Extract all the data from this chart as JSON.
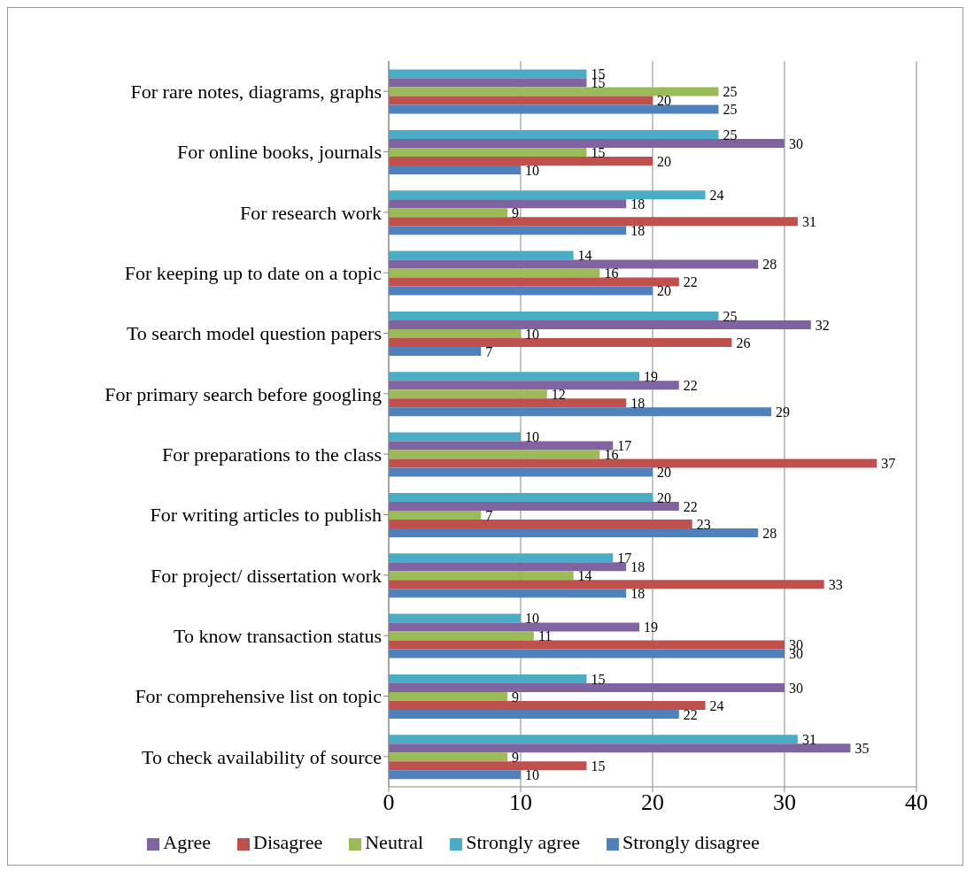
{
  "chart_data": {
    "type": "bar",
    "orientation": "horizontal",
    "categories": [
      "For rare notes, diagrams, graphs",
      "For online books, journals",
      "For research work",
      "For keeping up to date on a topic",
      "To search model question papers",
      "For primary search before googling",
      "For preparations to the class",
      "For writing articles to publish",
      "For project/ dissertation work",
      "To know transaction status",
      "For comprehensive list on topic",
      "To check availability of source"
    ],
    "series": [
      {
        "name": "Strongly agree",
        "color": "#4bacc6",
        "values": [
          15,
          25,
          24,
          14,
          25,
          19,
          10,
          20,
          17,
          10,
          15,
          31
        ]
      },
      {
        "name": "Agree",
        "color": "#8064a2",
        "values": [
          15,
          30,
          18,
          28,
          32,
          22,
          17,
          22,
          18,
          19,
          30,
          35
        ]
      },
      {
        "name": "Neutral",
        "color": "#9bbb59",
        "values": [
          25,
          15,
          9,
          16,
          10,
          12,
          16,
          7,
          14,
          11,
          9,
          9
        ]
      },
      {
        "name": "Disagree",
        "color": "#c0504d",
        "values": [
          20,
          20,
          31,
          22,
          26,
          18,
          37,
          23,
          33,
          30,
          24,
          15
        ]
      },
      {
        "name": "Strongly disagree",
        "color": "#4f81bd",
        "values": [
          25,
          10,
          18,
          20,
          7,
          29,
          20,
          28,
          18,
          30,
          22,
          10
        ]
      }
    ],
    "xlim": [
      0,
      40
    ],
    "xticks": [
      0,
      10,
      20,
      30,
      40
    ],
    "grid": "x",
    "legend": "bottom",
    "data_labels": true
  }
}
